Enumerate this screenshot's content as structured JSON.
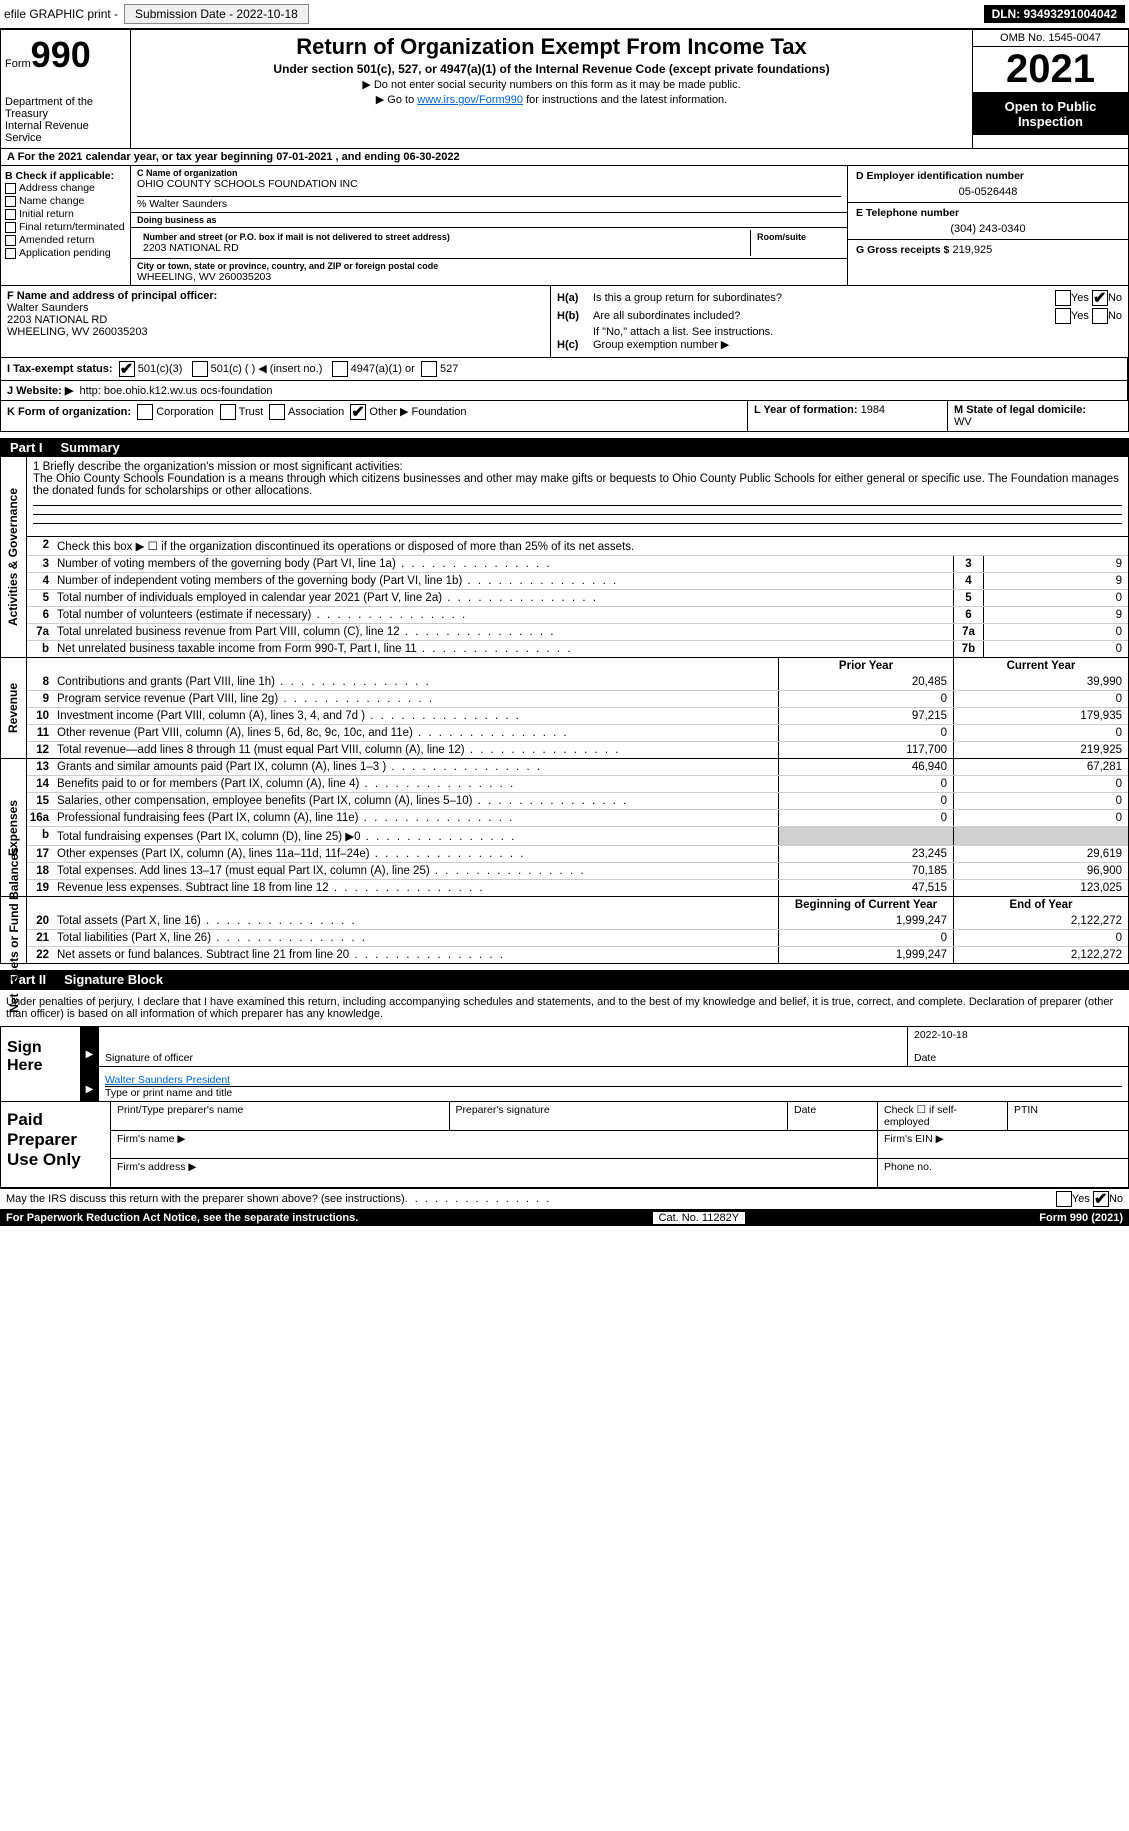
{
  "topbar": {
    "efile": "efile GRAPHIC print -",
    "submission": "Submission Date - 2022-10-18",
    "dln": "DLN: 93493291004042"
  },
  "header": {
    "form_label": "Form",
    "form_num": "990",
    "title": "Return of Organization Exempt From Income Tax",
    "subtitle": "Under section 501(c), 527, or 4947(a)(1) of the Internal Revenue Code (except private foundations)",
    "note1": "▶ Do not enter social security numbers on this form as it may be made public.",
    "note2_pre": "▶ Go to ",
    "note2_link": "www.irs.gov/Form990",
    "note2_post": " for instructions and the latest information.",
    "dept": "Department of the Treasury",
    "dept2": "Internal Revenue Service",
    "omb": "OMB No. 1545-0047",
    "year": "2021",
    "inspect": "Open to Public Inspection"
  },
  "row_a": "A  For the 2021 calendar year, or tax year beginning 07-01-2021    , and ending 06-30-2022",
  "box_b": {
    "label": "B Check if applicable:",
    "opts": [
      "Address change",
      "Name change",
      "Initial return",
      "Final return/terminated",
      "Amended return",
      "Application pending"
    ]
  },
  "box_c": {
    "name_lbl": "C Name of organization",
    "name": "OHIO COUNTY SCHOOLS FOUNDATION INC",
    "care": "% Walter Saunders",
    "dba_lbl": "Doing business as",
    "street_lbl": "Number and street (or P.O. box if mail is not delivered to street address)",
    "room_lbl": "Room/suite",
    "street": "2203 NATIONAL RD",
    "city_lbl": "City or town, state or province, country, and ZIP or foreign postal code",
    "city": "WHEELING, WV  260035203"
  },
  "box_d": {
    "lbl": "D Employer identification number",
    "val": "05-0526448"
  },
  "box_e": {
    "lbl": "E Telephone number",
    "val": "(304) 243-0340"
  },
  "box_g": {
    "lbl": "G Gross receipts $",
    "val": "219,925"
  },
  "box_f": {
    "lbl": "F Name and address of principal officer:",
    "name": "Walter Saunders",
    "addr1": "2203 NATIONAL RD",
    "addr2": "WHEELING, WV  260035203"
  },
  "box_h": {
    "a_lbl": "H(a)",
    "a_txt": "Is this a group return for subordinates?",
    "b_lbl": "H(b)",
    "b_txt": "Are all subordinates included?",
    "b_note": "If \"No,\" attach a list. See instructions.",
    "c_lbl": "H(c)",
    "c_txt": "Group exemption number ▶",
    "yes": "Yes",
    "no": "No"
  },
  "row_i": {
    "lbl": "I  Tax-exempt status:",
    "o1": "501(c)(3)",
    "o2": "501(c) (   ) ◀ (insert no.)",
    "o3": "4947(a)(1) or",
    "o4": "527"
  },
  "row_j": {
    "lbl": "J  Website: ▶",
    "val": "http: boe.ohio.k12.wv.us ocs-foundation"
  },
  "row_k": {
    "lbl": "K Form of organization:",
    "o1": "Corporation",
    "o2": "Trust",
    "o3": "Association",
    "o4": "Other ▶",
    "o4v": "Foundation"
  },
  "row_l": {
    "lbl": "L Year of formation:",
    "val": "1984"
  },
  "row_m": {
    "lbl": "M State of legal domicile:",
    "val": "WV"
  },
  "part1": {
    "tag": "Part I",
    "title": "Summary"
  },
  "mission": {
    "lbl": "1   Briefly describe the organization's mission or most significant activities:",
    "text": "The Ohio County Schools Foundation is a means through which citizens businesses and other may make gifts or bequests to Ohio County Public Schools for either general or specific use. The Foundation manages the donated funds for scholarships or other allocations."
  },
  "lines_gov": [
    {
      "n": "2",
      "d": "Check this box ▶ ☐  if the organization discontinued its operations or disposed of more than 25% of its net assets."
    },
    {
      "n": "3",
      "d": "Number of voting members of the governing body (Part VI, line 1a)",
      "b": "3",
      "v": "9"
    },
    {
      "n": "4",
      "d": "Number of independent voting members of the governing body (Part VI, line 1b)",
      "b": "4",
      "v": "9"
    },
    {
      "n": "5",
      "d": "Total number of individuals employed in calendar year 2021 (Part V, line 2a)",
      "b": "5",
      "v": "0"
    },
    {
      "n": "6",
      "d": "Total number of volunteers (estimate if necessary)",
      "b": "6",
      "v": "9"
    },
    {
      "n": "7a",
      "d": "Total unrelated business revenue from Part VIII, column (C), line 12",
      "b": "7a",
      "v": "0"
    },
    {
      "n": "b",
      "d": "Net unrelated business taxable income from Form 990-T, Part I, line 11",
      "b": "7b",
      "v": "0"
    }
  ],
  "col_hdr": {
    "py": "Prior Year",
    "cy": "Current Year"
  },
  "lines_rev": [
    {
      "n": "8",
      "d": "Contributions and grants (Part VIII, line 1h)",
      "p": "20,485",
      "c": "39,990"
    },
    {
      "n": "9",
      "d": "Program service revenue (Part VIII, line 2g)",
      "p": "0",
      "c": "0"
    },
    {
      "n": "10",
      "d": "Investment income (Part VIII, column (A), lines 3, 4, and 7d )",
      "p": "97,215",
      "c": "179,935"
    },
    {
      "n": "11",
      "d": "Other revenue (Part VIII, column (A), lines 5, 6d, 8c, 9c, 10c, and 11e)",
      "p": "0",
      "c": "0"
    },
    {
      "n": "12",
      "d": "Total revenue—add lines 8 through 11 (must equal Part VIII, column (A), line 12)",
      "p": "117,700",
      "c": "219,925"
    }
  ],
  "lines_exp": [
    {
      "n": "13",
      "d": "Grants and similar amounts paid (Part IX, column (A), lines 1–3 )",
      "p": "46,940",
      "c": "67,281"
    },
    {
      "n": "14",
      "d": "Benefits paid to or for members (Part IX, column (A), line 4)",
      "p": "0",
      "c": "0"
    },
    {
      "n": "15",
      "d": "Salaries, other compensation, employee benefits (Part IX, column (A), lines 5–10)",
      "p": "0",
      "c": "0"
    },
    {
      "n": "16a",
      "d": "Professional fundraising fees (Part IX, column (A), line 11e)",
      "p": "0",
      "c": "0"
    },
    {
      "n": "b",
      "d": "Total fundraising expenses (Part IX, column (D), line 25) ▶0",
      "p": "",
      "c": "",
      "shade": true
    },
    {
      "n": "17",
      "d": "Other expenses (Part IX, column (A), lines 11a–11d, 11f–24e)",
      "p": "23,245",
      "c": "29,619"
    },
    {
      "n": "18",
      "d": "Total expenses. Add lines 13–17 (must equal Part IX, column (A), line 25)",
      "p": "70,185",
      "c": "96,900"
    },
    {
      "n": "19",
      "d": "Revenue less expenses. Subtract line 18 from line 12",
      "p": "47,515",
      "c": "123,025"
    }
  ],
  "col_hdr2": {
    "b": "Beginning of Current Year",
    "e": "End of Year"
  },
  "lines_net": [
    {
      "n": "20",
      "d": "Total assets (Part X, line 16)",
      "p": "1,999,247",
      "c": "2,122,272"
    },
    {
      "n": "21",
      "d": "Total liabilities (Part X, line 26)",
      "p": "0",
      "c": "0"
    },
    {
      "n": "22",
      "d": "Net assets or fund balances. Subtract line 21 from line 20",
      "p": "1,999,247",
      "c": "2,122,272"
    }
  ],
  "vlabels": {
    "gov": "Activities & Governance",
    "rev": "Revenue",
    "exp": "Expenses",
    "net": "Net Assets or Fund Balances"
  },
  "part2": {
    "tag": "Part II",
    "title": "Signature Block"
  },
  "sig": {
    "intro": "Under penalties of perjury, I declare that I have examined this return, including accompanying schedules and statements, and to the best of my knowledge and belief, it is true, correct, and complete. Declaration of preparer (other than officer) is based on all information of which preparer has any knowledge.",
    "here": "Sign Here",
    "so": "Signature of officer",
    "date": "Date",
    "date_val": "2022-10-18",
    "name": "Walter Saunders  President",
    "name_lbl": "Type or print name and title"
  },
  "paid": {
    "title": "Paid Preparer Use Only",
    "c1": "Print/Type preparer's name",
    "c2": "Preparer's signature",
    "c3": "Date",
    "c4": "Check ☐ if self-employed",
    "c5": "PTIN",
    "r2a": "Firm's name    ▶",
    "r2b": "Firm's EIN ▶",
    "r3a": "Firm's address ▶",
    "r3b": "Phone no."
  },
  "footer": {
    "q": "May the IRS discuss this return with the preparer shown above? (see instructions)",
    "yes": "Yes",
    "no": "No",
    "pra": "For Paperwork Reduction Act Notice, see the separate instructions.",
    "cat": "Cat. No. 11282Y",
    "form": "Form 990 (2021)"
  },
  "colors": {
    "link": "#0066cc",
    "shade": "#d0d0d0"
  }
}
